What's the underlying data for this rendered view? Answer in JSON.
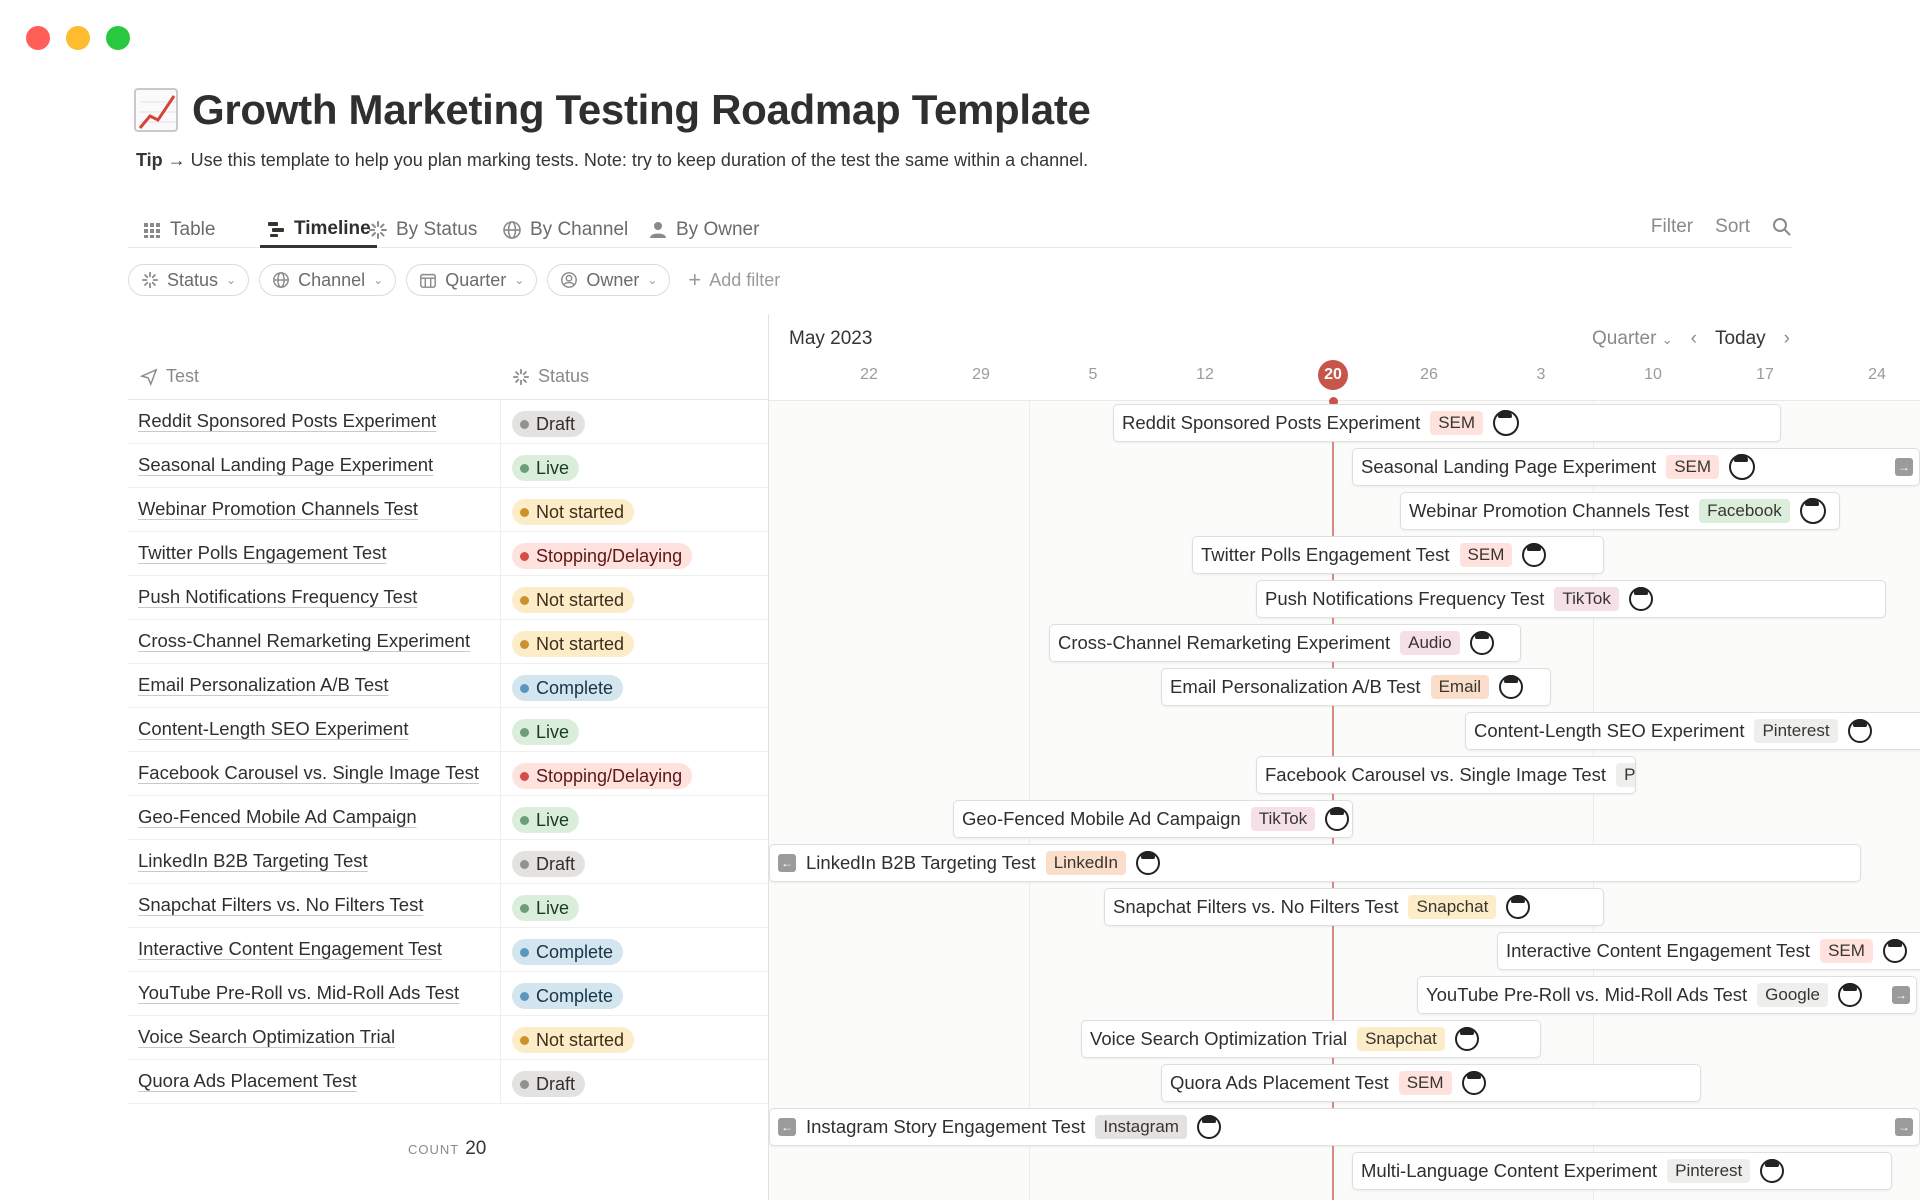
{
  "window": {
    "controls": [
      "close",
      "minimize",
      "zoom"
    ],
    "colors": [
      "#ff5f57",
      "#febc2e",
      "#28c840"
    ]
  },
  "page": {
    "title": "Growth Marketing Testing Roadmap Template",
    "title_icon": "chart-increasing-emoji",
    "tip_label": "Tip →",
    "tip_text": " Use this template to help you plan marking tests. Note: try to keep duration of the test the same within a channel."
  },
  "views": {
    "tabs": [
      {
        "label": "Table",
        "icon": "table-icon"
      },
      {
        "label": "Timeline",
        "icon": "timeline-icon",
        "active": true
      },
      {
        "label": "By Status",
        "icon": "status-icon"
      },
      {
        "label": "By Channel",
        "icon": "globe-icon"
      },
      {
        "label": "By Owner",
        "icon": "person-icon"
      }
    ],
    "filter_label": "Filter",
    "sort_label": "Sort"
  },
  "filters": {
    "chips": [
      {
        "label": "Status",
        "icon": "status-icon"
      },
      {
        "label": "Channel",
        "icon": "globe-icon"
      },
      {
        "label": "Quarter",
        "icon": "calendar-icon"
      },
      {
        "label": "Owner",
        "icon": "person-circle-icon"
      }
    ],
    "add_filter_label": "Add filter"
  },
  "table": {
    "columns": [
      "Test",
      "Status"
    ],
    "rows": [
      {
        "name": "Reddit Sponsored Posts Experiment",
        "status": "Draft"
      },
      {
        "name": "Seasonal Landing Page Experiment",
        "status": "Live"
      },
      {
        "name": "Webinar Promotion Channels Test",
        "status": "Not started"
      },
      {
        "name": "Twitter Polls Engagement Test",
        "status": "Stopping/Delaying"
      },
      {
        "name": "Push Notifications Frequency Test",
        "status": "Not started"
      },
      {
        "name": "Cross-Channel Remarketing Experiment",
        "status": "Not started"
      },
      {
        "name": "Email Personalization A/B Test",
        "status": "Complete"
      },
      {
        "name": "Content-Length SEO Experiment",
        "status": "Live"
      },
      {
        "name": "Facebook Carousel vs. Single Image Test",
        "status": "Stopping/Delaying"
      },
      {
        "name": "Geo-Fenced Mobile Ad Campaign",
        "status": "Live"
      },
      {
        "name": "LinkedIn B2B Targeting Test",
        "status": "Draft"
      },
      {
        "name": "Snapchat Filters vs. No Filters Test",
        "status": "Live"
      },
      {
        "name": "Interactive Content Engagement Test",
        "status": "Complete"
      },
      {
        "name": "YouTube Pre-Roll vs. Mid-Roll Ads Test",
        "status": "Complete"
      },
      {
        "name": "Voice Search Optimization Trial",
        "status": "Not started"
      },
      {
        "name": "Quora Ads Placement Test",
        "status": "Draft"
      }
    ],
    "count_label": "COUNT",
    "count_value": "20"
  },
  "status_colors": {
    "Draft": {
      "bg": "#e3e2e0",
      "dot": "#91918e",
      "fg": "#32302c"
    },
    "Live": {
      "bg": "#dbeddb",
      "dot": "#6c9b7d",
      "fg": "#1c3829"
    },
    "Not started": {
      "bg": "#fdecc8",
      "dot": "#cb912f",
      "fg": "#402c1b"
    },
    "Stopping/Delaying": {
      "bg": "#ffe2dd",
      "dot": "#d44c47",
      "fg": "#5d1715"
    },
    "Complete": {
      "bg": "#d3e5ef",
      "dot": "#5b97bd",
      "fg": "#183347"
    }
  },
  "channel_colors": {
    "SEM": "#ffe2dd",
    "Facebook": "#dbeddb",
    "TikTok": "#f5e0e9",
    "Audio": "#f5e0e9",
    "Email": "#fadec9",
    "Pinterest": "#eeeeec",
    "LinkedIn": "#fadec9",
    "Snapchat": "#fdecc8",
    "Google": "#eeeeec",
    "Instagram": "#e3e2e0"
  },
  "timeline": {
    "month": "May 2023",
    "range_label": "Quarter",
    "today_label": "Today",
    "days": [
      "22",
      "29",
      "5",
      "12",
      "20",
      "26",
      "3",
      "10",
      "17",
      "24"
    ],
    "today_day": "20",
    "bars": [
      {
        "name": "Reddit Sponsored Posts Experiment",
        "tag": "SEM"
      },
      {
        "name": "Seasonal Landing Page Experiment",
        "tag": "SEM"
      },
      {
        "name": "Webinar Promotion Channels Test",
        "tag": "Facebook"
      },
      {
        "name": "Twitter Polls Engagement Test",
        "tag": "SEM"
      },
      {
        "name": "Push Notifications Frequency Test",
        "tag": "TikTok"
      },
      {
        "name": "Cross-Channel Remarketing Experiment",
        "tag": "Audio"
      },
      {
        "name": "Email Personalization A/B Test",
        "tag": "Email"
      },
      {
        "name": "Content-Length SEO Experiment",
        "tag": "Pinterest"
      },
      {
        "name": "Facebook Carousel vs. Single Image Test",
        "tag": "Pinterest"
      },
      {
        "name": "Geo-Fenced Mobile Ad Campaign",
        "tag": "TikTok"
      },
      {
        "name": "LinkedIn B2B Targeting Test",
        "tag": "LinkedIn"
      },
      {
        "name": "Snapchat Filters vs. No Filters Test",
        "tag": "Snapchat"
      },
      {
        "name": "Interactive Content Engagement Test",
        "tag": "SEM"
      },
      {
        "name": "YouTube Pre-Roll vs. Mid-Roll Ads Test",
        "tag": "Google"
      },
      {
        "name": "Voice Search Optimization Trial",
        "tag": "Snapchat"
      },
      {
        "name": "Quora Ads Placement Test",
        "tag": "SEM"
      },
      {
        "name": "Instagram Story Engagement Test",
        "tag": "Instagram"
      },
      {
        "name": "Multi-Language Content Experiment",
        "tag": "Pinterest"
      }
    ]
  }
}
